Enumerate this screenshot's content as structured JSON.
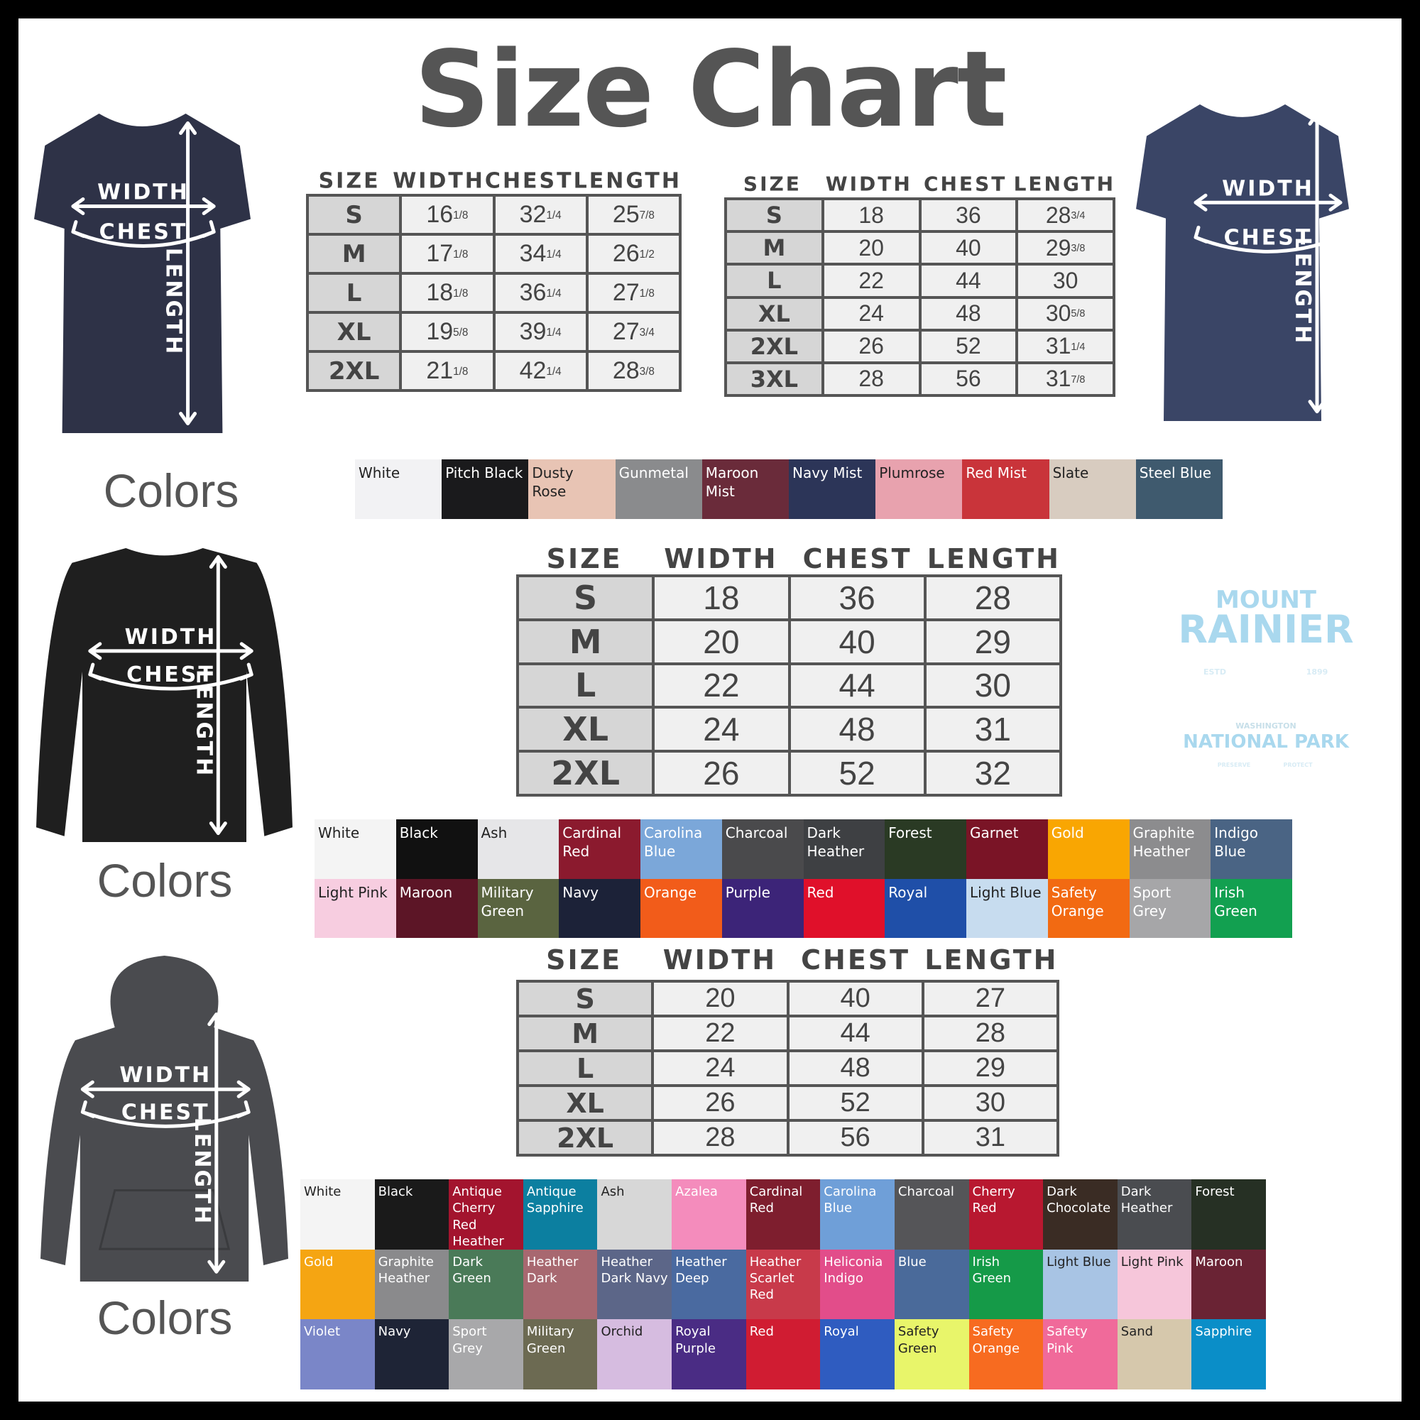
{
  "title": "Size Chart",
  "garments": [
    {
      "kind": "tee",
      "color": "#2e3247",
      "labels": {
        "width": "WIDTH",
        "chest": "CHEST",
        "length": "LENGTH"
      }
    },
    {
      "kind": "tee",
      "color": "#3a4566",
      "labels": {
        "width": "WIDTH",
        "chest": "CHEST",
        "length": "LENGTH"
      }
    },
    {
      "kind": "longsleeve",
      "color": "#1f1f1f",
      "labels": {
        "width": "WIDTH",
        "chest": "CHEST",
        "length": "LENGTH"
      }
    },
    {
      "kind": "hoodie",
      "color": "#4a4b4f",
      "labels": {
        "width": "WIDTH",
        "chest": "CHEST",
        "length": "LENGTH"
      }
    }
  ],
  "colors_labels": [
    "Colors",
    "Colors",
    "Colors"
  ],
  "tables": [
    {
      "headers": [
        "SIZE",
        "WIDTH",
        "CHEST",
        "LENGTH"
      ],
      "rows": [
        [
          "S",
          [
            "16",
            "1/8"
          ],
          [
            "32",
            "1/4"
          ],
          [
            "25",
            "7/8"
          ]
        ],
        [
          "M",
          [
            "17",
            "1/8"
          ],
          [
            "34",
            "1/4"
          ],
          [
            "26",
            "1/2"
          ]
        ],
        [
          "L",
          [
            "18",
            "1/8"
          ],
          [
            "36",
            "1/4"
          ],
          [
            "27",
            "1/8"
          ]
        ],
        [
          "XL",
          [
            "19",
            "5/8"
          ],
          [
            "39",
            "1/4"
          ],
          [
            "27",
            "3/4"
          ]
        ],
        [
          "2XL",
          [
            "21",
            "1/8"
          ],
          [
            "42",
            "1/4"
          ],
          [
            "28",
            "3/8"
          ]
        ]
      ]
    },
    {
      "headers": [
        "SIZE",
        "WIDTH",
        "CHEST",
        "LENGTH"
      ],
      "rows": [
        [
          "S",
          "18",
          "36",
          [
            "28",
            "3/4"
          ]
        ],
        [
          "M",
          "20",
          "40",
          [
            "29",
            "3/8"
          ]
        ],
        [
          "L",
          "22",
          "44",
          "30"
        ],
        [
          "XL",
          "24",
          "48",
          [
            "30",
            "5/8"
          ]
        ],
        [
          "2XL",
          "26",
          "52",
          [
            "31",
            "1/4"
          ]
        ],
        [
          "3XL",
          "28",
          "56",
          [
            "31",
            "7/8"
          ]
        ]
      ]
    },
    {
      "headers": [
        "SIZE",
        "WIDTH",
        "CHEST",
        "LENGTH"
      ],
      "rows": [
        [
          "S",
          "18",
          "36",
          "28"
        ],
        [
          "M",
          "20",
          "40",
          "29"
        ],
        [
          "L",
          "22",
          "44",
          "30"
        ],
        [
          "XL",
          "24",
          "48",
          "31"
        ],
        [
          "2XL",
          "26",
          "52",
          "32"
        ]
      ]
    },
    {
      "headers": [
        "SIZE",
        "WIDTH",
        "CHEST",
        "LENGTH"
      ],
      "rows": [
        [
          "S",
          "20",
          "40",
          "27"
        ],
        [
          "M",
          "22",
          "44",
          "28"
        ],
        [
          "L",
          "24",
          "48",
          "29"
        ],
        [
          "XL",
          "26",
          "52",
          "30"
        ],
        [
          "2XL",
          "28",
          "56",
          "31"
        ]
      ]
    }
  ],
  "palettes": [
    {
      "swatches": [
        {
          "name": "White",
          "color": "#f2f2f4"
        },
        {
          "name": "Pitch Black",
          "color": "#1a1a1c"
        },
        {
          "name": "Dusty Rose",
          "color": "#e8c4b4"
        },
        {
          "name": "Gunmetal",
          "color": "#8a8b8d"
        },
        {
          "name": "Maroon Mist",
          "color": "#6a2b3a"
        },
        {
          "name": "Navy Mist",
          "color": "#2c3558"
        },
        {
          "name": "Plumrose",
          "color": "#e8a2ae"
        },
        {
          "name": "Red Mist",
          "color": "#c9343a"
        },
        {
          "name": "Slate",
          "color": "#d8ccc0"
        },
        {
          "name": "Steel Blue",
          "color": "#3f5a6e"
        }
      ]
    },
    {
      "swatches": [
        {
          "name": "White",
          "color": "#f4f4f4"
        },
        {
          "name": "Black",
          "color": "#111111"
        },
        {
          "name": "Ash",
          "color": "#e6e6e8"
        },
        {
          "name": "Cardinal Red",
          "color": "#8b1a2e"
        },
        {
          "name": "Carolina Blue",
          "color": "#7ba7d9"
        },
        {
          "name": "Charcoal",
          "color": "#4a4a4c"
        },
        {
          "name": "Dark Heather",
          "color": "#3e4043"
        },
        {
          "name": "Forest",
          "color": "#2a3a24"
        },
        {
          "name": "Garnet",
          "color": "#7a1426"
        },
        {
          "name": "Gold",
          "color": "#f9a602"
        },
        {
          "name": "Graphite Heather",
          "color": "#8c8c8e"
        },
        {
          "name": "Indigo Blue",
          "color": "#4a6484"
        },
        {
          "name": "Light Pink",
          "color": "#f7cde0"
        },
        {
          "name": "Maroon",
          "color": "#5c1526"
        },
        {
          "name": "Military Green",
          "color": "#5a6440"
        },
        {
          "name": "Navy",
          "color": "#1c2238"
        },
        {
          "name": "Orange",
          "color": "#f25c1a"
        },
        {
          "name": "Purple",
          "color": "#3c2478"
        },
        {
          "name": "Red",
          "color": "#e0102a"
        },
        {
          "name": "Royal",
          "color": "#1f4fa8"
        },
        {
          "name": "Light Blue",
          "color": "#c7dcef"
        },
        {
          "name": "Safety Orange",
          "color": "#f26a12"
        },
        {
          "name": "Sport Grey",
          "color": "#a6a6a8"
        },
        {
          "name": "Irish Green",
          "color": "#12a050"
        }
      ]
    },
    {
      "swatches": [
        {
          "name": "White",
          "color": "#f4f4f4"
        },
        {
          "name": "Black",
          "color": "#1a1a1a"
        },
        {
          "name": "Antique Cherry Red Heather",
          "color": "#a3142e"
        },
        {
          "name": "Antique Sapphire",
          "color": "#0c7fa0"
        },
        {
          "name": "Ash",
          "color": "#d7d7d7"
        },
        {
          "name": "Azalea",
          "color": "#f48cbc"
        },
        {
          "name": "Cardinal Red",
          "color": "#7e1e2e"
        },
        {
          "name": "Carolina Blue",
          "color": "#6f9fd8"
        },
        {
          "name": "Charcoal",
          "color": "#555558"
        },
        {
          "name": "Cherry Red",
          "color": "#b81830"
        },
        {
          "name": "Dark Chocolate",
          "color": "#3a2c24"
        },
        {
          "name": "Dark Heather",
          "color": "#4a4c50"
        },
        {
          "name": "Forest",
          "color": "#263024"
        },
        {
          "name": "Gold",
          "color": "#f5a512"
        },
        {
          "name": "Graphite Heather",
          "color": "#8a8a8c"
        },
        {
          "name": "Dark Green",
          "color": "#4a7a58"
        },
        {
          "name": "Heather Dark",
          "color": "#a86870"
        },
        {
          "name": "Heather Dark Navy",
          "color": "#5c6688"
        },
        {
          "name": "Heather Deep",
          "color": "#4a6aa0"
        },
        {
          "name": "Heather Scarlet Red",
          "color": "#c83a4a"
        },
        {
          "name": "Heliconia Indigo",
          "color": "#e24d8a"
        },
        {
          "name": "Blue",
          "color": "#4a6a9a"
        },
        {
          "name": "Irish Green",
          "color": "#159a48"
        },
        {
          "name": "Light Blue",
          "color": "#a8c4e4"
        },
        {
          "name": "Light Pink",
          "color": "#f6c6da"
        },
        {
          "name": "Maroon",
          "color": "#6a2334"
        },
        {
          "name": "Violet",
          "color": "#7a86c8"
        },
        {
          "name": "Navy",
          "color": "#1e2436"
        },
        {
          "name": "Sport Grey",
          "color": "#a8a8aa"
        },
        {
          "name": "Military Green",
          "color": "#6c6a52"
        },
        {
          "name": "Orchid",
          "color": "#d6bce0"
        },
        {
          "name": "Royal Purple",
          "color": "#4a2c84"
        },
        {
          "name": "Red",
          "color": "#d01c32"
        },
        {
          "name": "Royal",
          "color": "#2f5cc0"
        },
        {
          "name": "Safety Green",
          "color": "#e8f56a"
        },
        {
          "name": "Safety Orange",
          "color": "#f76b20"
        },
        {
          "name": "Safety Pink",
          "color": "#f06a9a"
        },
        {
          "name": "Sand",
          "color": "#d6c8ac"
        },
        {
          "name": "Sapphire",
          "color": "#0a8ec8"
        }
      ]
    }
  ],
  "logo": {
    "line1": "MOUNT",
    "line2": "RAINIER",
    "estd": "ESTD",
    "year": "1899",
    "state": "WASHINGTON",
    "park": "NATIONAL PARK",
    "left": "PRESERVE",
    "right": "PROTECT"
  }
}
